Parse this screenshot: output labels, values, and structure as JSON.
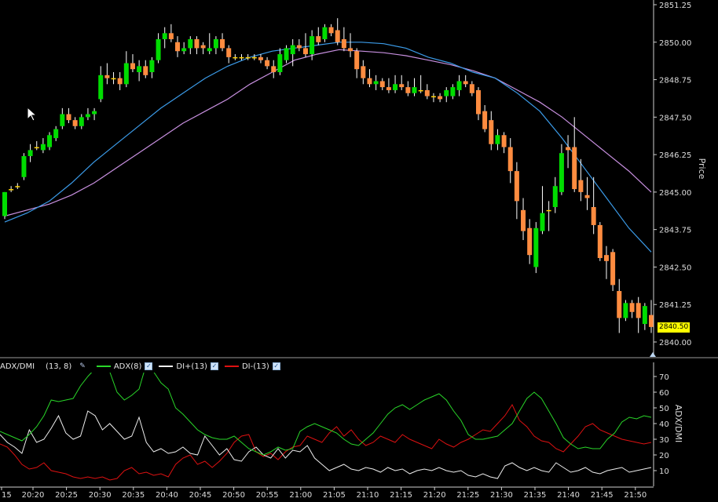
{
  "colors": {
    "background": "#000000",
    "bull": "#00dd00",
    "bear": "#ff8c40",
    "doji": "#ffd200",
    "ma_fast": "#3b9be8",
    "ma_slow": "#c890e0",
    "adx": "#29d629",
    "di_plus": "#eeeeee",
    "di_minus": "#dd1111",
    "axis_text": "#dddddd",
    "price_tag": "#ffff00"
  },
  "price_panel": {
    "axis_title": "Price",
    "ticks": [
      "2851.25",
      "2850.00",
      "2848.75",
      "2847.50",
      "2846.25",
      "2845.00",
      "2843.75",
      "2842.50",
      "2841.25",
      "2840.00"
    ],
    "last_price": "2840.50"
  },
  "indicator_panel": {
    "axis_title": "ADX/DMI",
    "legend": {
      "name": "ADX/DMI",
      "params": "(13, 8)",
      "adx_label": "ADX(8)",
      "di_plus_label": "DI+(13)",
      "di_minus_label": "DI-(13)"
    },
    "ticks": [
      "70",
      "60",
      "50",
      "40",
      "30",
      "20",
      "10"
    ]
  },
  "time_axis": {
    "labels": [
      "15",
      "20:20",
      "20:25",
      "20:30",
      "20:35",
      "20:40",
      "20:45",
      "20:50",
      "20:55",
      "21:00",
      "21:05",
      "21:10",
      "21:15",
      "21:20",
      "21:25",
      "21:30",
      "21:35",
      "21:40",
      "21:45",
      "21:50"
    ]
  },
  "chart_data": {
    "type": "candlestick",
    "ylim": [
      2840.0,
      2851.25
    ],
    "candles": [
      [
        2844.2,
        2845.0,
        2844.1,
        2845.0
      ],
      [
        2845.1,
        2845.2,
        2845.0,
        2845.1
      ],
      [
        2845.2,
        2845.3,
        2845.1,
        2845.2
      ],
      [
        2845.5,
        2846.3,
        2845.4,
        2846.2
      ],
      [
        2846.2,
        2846.6,
        2846.0,
        2846.4
      ],
      [
        2846.5,
        2846.7,
        2846.4,
        2846.5
      ],
      [
        2846.4,
        2846.8,
        2846.3,
        2846.6
      ],
      [
        2846.5,
        2847.0,
        2846.4,
        2846.9
      ],
      [
        2846.8,
        2847.2,
        2846.7,
        2847.1
      ],
      [
        2847.2,
        2847.8,
        2847.1,
        2847.6
      ],
      [
        2847.6,
        2847.8,
        2847.3,
        2847.4
      ],
      [
        2847.4,
        2847.5,
        2847.1,
        2847.2
      ],
      [
        2847.2,
        2847.6,
        2847.1,
        2847.5
      ],
      [
        2847.5,
        2847.8,
        2847.4,
        2847.6
      ],
      [
        2847.6,
        2847.8,
        2847.4,
        2847.7
      ],
      [
        2848.1,
        2849.2,
        2848.0,
        2848.9
      ],
      [
        2848.9,
        2849.3,
        2848.6,
        2848.8
      ],
      [
        2848.8,
        2849.0,
        2848.6,
        2848.8
      ],
      [
        2848.8,
        2849.0,
        2848.4,
        2848.6
      ],
      [
        2848.6,
        2849.7,
        2848.5,
        2849.3
      ],
      [
        2849.3,
        2849.6,
        2849.0,
        2849.1
      ],
      [
        2849.0,
        2849.4,
        2848.7,
        2849.2
      ],
      [
        2849.2,
        2849.4,
        2848.8,
        2848.9
      ],
      [
        2849.0,
        2849.5,
        2848.8,
        2849.4
      ],
      [
        2849.4,
        2850.3,
        2849.3,
        2850.1
      ],
      [
        2850.1,
        2850.5,
        2849.8,
        2850.3
      ],
      [
        2850.3,
        2850.6,
        2850.0,
        2850.1
      ],
      [
        2850.0,
        2850.2,
        2849.5,
        2849.7
      ],
      [
        2849.7,
        2850.0,
        2849.6,
        2849.8
      ],
      [
        2849.8,
        2850.2,
        2849.6,
        2850.1
      ],
      [
        2850.1,
        2850.2,
        2849.6,
        2849.8
      ],
      [
        2849.9,
        2850.0,
        2849.6,
        2849.8
      ],
      [
        2849.7,
        2850.3,
        2849.6,
        2849.8
      ],
      [
        2849.8,
        2850.2,
        2849.6,
        2850.1
      ],
      [
        2850.1,
        2850.3,
        2849.7,
        2849.8
      ],
      [
        2849.8,
        2849.9,
        2849.3,
        2849.5
      ],
      [
        2849.5,
        2849.6,
        2849.4,
        2849.5
      ],
      [
        2849.5,
        2849.6,
        2849.4,
        2849.5
      ],
      [
        2849.5,
        2849.6,
        2849.4,
        2849.5
      ],
      [
        2849.5,
        2849.6,
        2849.4,
        2849.5
      ],
      [
        2849.5,
        2849.6,
        2849.3,
        2849.4
      ],
      [
        2849.4,
        2849.5,
        2849.1,
        2849.2
      ],
      [
        2849.2,
        2849.4,
        2848.8,
        2849.0
      ],
      [
        2849.0,
        2849.8,
        2848.9,
        2849.6
      ],
      [
        2849.4,
        2849.9,
        2849.3,
        2849.8
      ],
      [
        2849.6,
        2850.1,
        2849.2,
        2849.9
      ],
      [
        2849.9,
        2850.1,
        2849.7,
        2849.8
      ],
      [
        2849.8,
        2850.3,
        2849.5,
        2849.6
      ],
      [
        2849.6,
        2850.4,
        2849.4,
        2850.2
      ],
      [
        2850.2,
        2850.5,
        2849.9,
        2850.0
      ],
      [
        2850.1,
        2850.6,
        2850.0,
        2850.5
      ],
      [
        2850.5,
        2850.6,
        2850.2,
        2850.3
      ],
      [
        2850.4,
        2850.8,
        2849.9,
        2850.0
      ],
      [
        2850.1,
        2850.5,
        2849.7,
        2849.8
      ],
      [
        2849.8,
        2850.3,
        2849.5,
        2849.7
      ],
      [
        2849.7,
        2849.8,
        2848.8,
        2849.1
      ],
      [
        2849.2,
        2849.4,
        2848.6,
        2848.8
      ],
      [
        2848.8,
        2849.1,
        2848.5,
        2848.6
      ],
      [
        2848.6,
        2848.9,
        2848.4,
        2848.7
      ],
      [
        2848.7,
        2848.8,
        2848.4,
        2848.5
      ],
      [
        2848.5,
        2848.8,
        2848.3,
        2848.4
      ],
      [
        2848.4,
        2848.9,
        2848.3,
        2848.6
      ],
      [
        2848.6,
        2848.9,
        2848.4,
        2848.5
      ],
      [
        2848.5,
        2848.7,
        2848.2,
        2848.3
      ],
      [
        2848.3,
        2848.8,
        2848.2,
        2848.5
      ],
      [
        2848.4,
        2848.9,
        2848.3,
        2848.4
      ],
      [
        2848.4,
        2848.6,
        2848.1,
        2848.2
      ],
      [
        2848.2,
        2848.3,
        2848.0,
        2848.2
      ],
      [
        2848.2,
        2848.3,
        2848.0,
        2848.1
      ],
      [
        2848.2,
        2848.5,
        2848.0,
        2848.4
      ],
      [
        2848.2,
        2848.6,
        2848.1,
        2848.5
      ],
      [
        2848.4,
        2848.9,
        2848.2,
        2848.7
      ],
      [
        2848.7,
        2848.9,
        2848.5,
        2848.6
      ],
      [
        2848.6,
        2848.7,
        2848.2,
        2848.3
      ],
      [
        2848.4,
        2848.5,
        2847.4,
        2847.6
      ],
      [
        2847.7,
        2847.9,
        2847.0,
        2847.1
      ],
      [
        2847.4,
        2847.7,
        2846.4,
        2846.6
      ],
      [
        2846.6,
        2847.1,
        2846.4,
        2846.9
      ],
      [
        2846.9,
        2847.0,
        2846.3,
        2846.5
      ],
      [
        2846.5,
        2846.8,
        2845.3,
        2845.7
      ],
      [
        2845.7,
        2846.0,
        2844.1,
        2844.7
      ],
      [
        2844.4,
        2844.8,
        2843.4,
        2843.7
      ],
      [
        2843.8,
        2844.1,
        2842.6,
        2842.9
      ],
      [
        2842.5,
        2844.0,
        2842.3,
        2843.8
      ],
      [
        2843.7,
        2845.2,
        2843.6,
        2844.3
      ],
      [
        2844.4,
        2844.7,
        2843.7,
        2844.4
      ],
      [
        2844.5,
        2845.5,
        2844.3,
        2845.2
      ],
      [
        2845.0,
        2846.6,
        2844.9,
        2846.3
      ],
      [
        2846.5,
        2846.9,
        2845.8,
        2846.4
      ],
      [
        2846.5,
        2847.5,
        2845.0,
        2845.1
      ],
      [
        2845.4,
        2846.1,
        2844.7,
        2845.0
      ],
      [
        2844.9,
        2845.5,
        2844.4,
        2844.8
      ],
      [
        2844.5,
        2845.5,
        2843.6,
        2843.9
      ],
      [
        2843.9,
        2844.0,
        2842.7,
        2842.8
      ],
      [
        2842.9,
        2843.2,
        2842.1,
        2842.7
      ],
      [
        2843.0,
        2843.1,
        2841.7,
        2841.9
      ],
      [
        2841.7,
        2842.1,
        2840.3,
        2840.8
      ],
      [
        2840.8,
        2841.4,
        2840.7,
        2841.3
      ],
      [
        2841.3,
        2841.4,
        2840.8,
        2841.0
      ],
      [
        2841.3,
        2841.5,
        2840.3,
        2840.8
      ],
      [
        2840.6,
        2841.3,
        2840.4,
        2841.2
      ],
      [
        2840.9,
        2841.4,
        2840.3,
        2840.5
      ]
    ],
    "ma_fast": [
      2844.0,
      2844.3,
      2844.7,
      2845.3,
      2846.0,
      2846.6,
      2847.2,
      2847.8,
      2848.3,
      2848.8,
      2849.2,
      2849.5,
      2849.7,
      2849.8,
      2849.9,
      2850.0,
      2850.0,
      2849.95,
      2849.8,
      2849.5,
      2849.3,
      2849.0,
      2848.8,
      2848.3,
      2847.7,
      2846.8,
      2845.8,
      2844.8,
      2843.8,
      2843.0
    ],
    "ma_slow": [
      2844.2,
      2844.4,
      2844.6,
      2844.9,
      2845.3,
      2845.8,
      2846.3,
      2846.8,
      2847.3,
      2847.7,
      2848.1,
      2848.6,
      2849.0,
      2849.4,
      2849.6,
      2849.75,
      2849.7,
      2849.65,
      2849.55,
      2849.4,
      2849.25,
      2849.05,
      2848.8,
      2848.4,
      2848.0,
      2847.5,
      2846.9,
      2846.3,
      2845.7,
      2845.0
    ],
    "adx": [
      35,
      33,
      31,
      29,
      33,
      38,
      45,
      55,
      54,
      55,
      56,
      64,
      70,
      75,
      76,
      73,
      60,
      55,
      58,
      62,
      78,
      73,
      66,
      62,
      50,
      46,
      41,
      36,
      33,
      31,
      30,
      30,
      32,
      28,
      24,
      22,
      20,
      22,
      25,
      23,
      24,
      35,
      38,
      40,
      38,
      36,
      34,
      30,
      27,
      26,
      30,
      34,
      40,
      46,
      50,
      52,
      49,
      52,
      55,
      57,
      59,
      55,
      48,
      42,
      33,
      30,
      30,
      31,
      32,
      36,
      40,
      48,
      56,
      60,
      56,
      48,
      40,
      31,
      27,
      24,
      25,
      24,
      24,
      30,
      34,
      41,
      44,
      43,
      45,
      44
    ],
    "di_plus": [
      33,
      28,
      25,
      21,
      36,
      28,
      30,
      37,
      45,
      34,
      30,
      32,
      48,
      45,
      36,
      40,
      35,
      30,
      32,
      44,
      28,
      22,
      24,
      21,
      22,
      25,
      21,
      20,
      32,
      26,
      20,
      24,
      17,
      16,
      22,
      25,
      20,
      18,
      24,
      18,
      23,
      22,
      26,
      18,
      14,
      10,
      12,
      14,
      11,
      10,
      12,
      11,
      9,
      12,
      10,
      11,
      8,
      10,
      11,
      10,
      12,
      10,
      9,
      10,
      7,
      6,
      8,
      6,
      5,
      13,
      15,
      12,
      10,
      12,
      10,
      9,
      15,
      12,
      9,
      10,
      12,
      9,
      8,
      10,
      11,
      12,
      9,
      10,
      11,
      12
    ],
    "di_minus": [
      27,
      25,
      20,
      14,
      11,
      12,
      15,
      10,
      9,
      8,
      6,
      5,
      6,
      5,
      6,
      4,
      5,
      10,
      12,
      8,
      9,
      7,
      8,
      6,
      14,
      18,
      20,
      14,
      16,
      12,
      16,
      21,
      28,
      32,
      33,
      22,
      19,
      21,
      17,
      22,
      25,
      26,
      32,
      30,
      28,
      34,
      38,
      32,
      36,
      30,
      26,
      28,
      32,
      30,
      28,
      33,
      30,
      28,
      26,
      24,
      30,
      27,
      25,
      28,
      30,
      33,
      36,
      35,
      40,
      45,
      52,
      42,
      38,
      32,
      29,
      28,
      24,
      22,
      27,
      32,
      38,
      40,
      36,
      34,
      32,
      30,
      29,
      28,
      27,
      28
    ]
  }
}
